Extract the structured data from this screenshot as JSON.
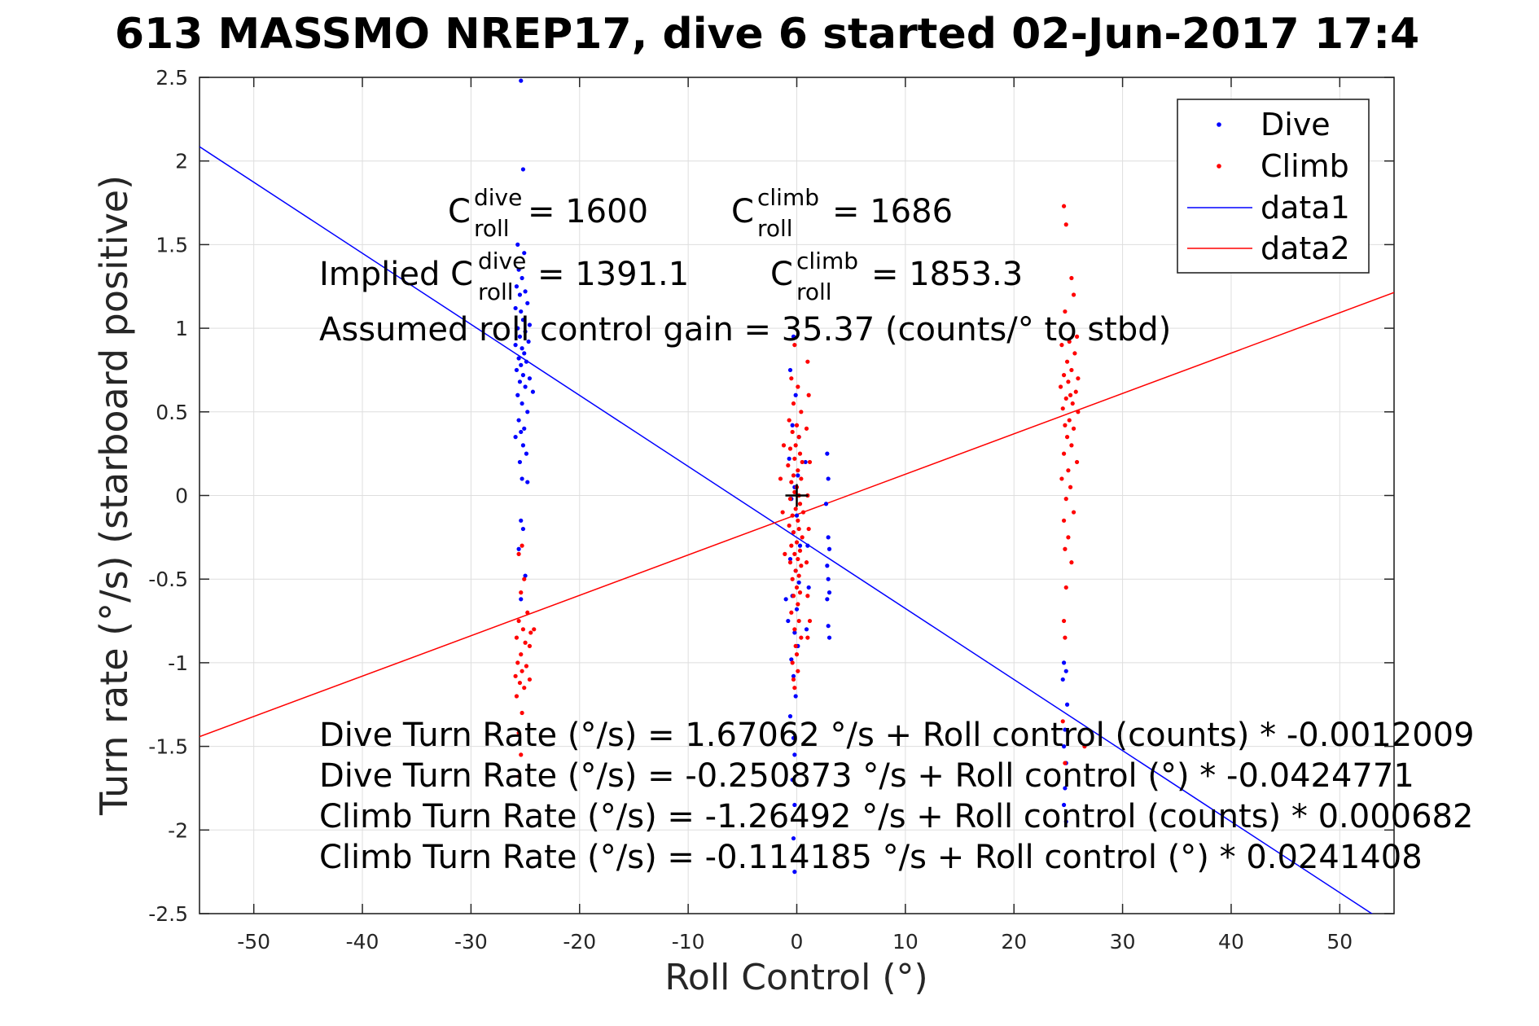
{
  "chart_data": {
    "type": "scatter",
    "title": "613 MASSMO NREP17, dive 6 started 02-Jun-2017 17:4",
    "xlabel": "Roll Control (°)",
    "ylabel": "Turn rate (°/s) (starboard positive)",
    "xlim": [
      -55,
      55
    ],
    "ylim": [
      -2.5,
      2.5
    ],
    "xticks": [
      -50,
      -40,
      -30,
      -20,
      -10,
      0,
      10,
      20,
      30,
      40,
      50
    ],
    "yticks": [
      -2.5,
      -2,
      -1.5,
      -1,
      -0.5,
      0,
      0.5,
      1,
      1.5,
      2,
      2.5
    ],
    "xtick_labels": [
      "-50",
      "-40",
      "-30",
      "-20",
      "-10",
      "0",
      "10",
      "20",
      "30",
      "40",
      "50"
    ],
    "ytick_labels": [
      "-2.5",
      "-2",
      "-1.5",
      "-1",
      "-0.5",
      "0",
      "0.5",
      "1",
      "1.5",
      "2",
      "2.5"
    ],
    "grid": true,
    "legend_position": "top-right",
    "colors": {
      "dive": "#0000ff",
      "climb": "#ff0000",
      "axis": "#262626",
      "grid": "#dedede"
    },
    "series": [
      {
        "name": "Dive",
        "kind": "points",
        "color": "#0000ff",
        "points": [
          [
            -25.4,
            2.48
          ],
          [
            -25.2,
            1.95
          ],
          [
            -25.7,
            1.5
          ],
          [
            -25.1,
            1.45
          ],
          [
            -25.6,
            1.35
          ],
          [
            -25.3,
            1.3
          ],
          [
            -25.8,
            1.25
          ],
          [
            -25.0,
            1.22
          ],
          [
            -25.5,
            1.2
          ],
          [
            -24.8,
            1.15
          ],
          [
            -25.9,
            1.12
          ],
          [
            -25.4,
            1.1
          ],
          [
            -25.2,
            1.05
          ],
          [
            -24.6,
            1.02
          ],
          [
            -25.7,
            1.0
          ],
          [
            -25.0,
            0.98
          ],
          [
            -25.5,
            0.95
          ],
          [
            -24.7,
            0.92
          ],
          [
            -25.9,
            0.9
          ],
          [
            -25.3,
            0.88
          ],
          [
            -25.1,
            0.85
          ],
          [
            -25.6,
            0.82
          ],
          [
            -24.9,
            0.8
          ],
          [
            -25.4,
            0.78
          ],
          [
            -25.8,
            0.75
          ],
          [
            -25.2,
            0.72
          ],
          [
            -24.6,
            0.7
          ],
          [
            -25.5,
            0.68
          ],
          [
            -25.0,
            0.65
          ],
          [
            -24.3,
            0.62
          ],
          [
            -25.7,
            0.6
          ],
          [
            -25.3,
            0.55
          ],
          [
            -24.8,
            0.5
          ],
          [
            -25.6,
            0.45
          ],
          [
            -25.1,
            0.4
          ],
          [
            -25.4,
            0.38
          ],
          [
            -25.9,
            0.35
          ],
          [
            -25.2,
            0.3
          ],
          [
            -24.9,
            0.25
          ],
          [
            -25.5,
            0.2
          ],
          [
            -25.3,
            0.1
          ],
          [
            -24.8,
            0.08
          ],
          [
            -25.4,
            -0.15
          ],
          [
            -25.2,
            -0.2
          ],
          [
            -25.6,
            -0.32
          ],
          [
            -25.0,
            -0.48
          ],
          [
            -25.4,
            -0.62
          ],
          [
            -0.3,
            0.95
          ],
          [
            -0.6,
            0.75
          ],
          [
            -0.1,
            0.6
          ],
          [
            -0.4,
            0.42
          ],
          [
            0.2,
            0.35
          ],
          [
            -0.7,
            0.22
          ],
          [
            0.1,
            0.12
          ],
          [
            -0.2,
            0.05
          ],
          [
            -0.5,
            -0.02
          ],
          [
            0.0,
            -0.12
          ],
          [
            -0.3,
            -0.22
          ],
          [
            0.3,
            -0.3
          ],
          [
            -0.6,
            -0.38
          ],
          [
            -0.1,
            -0.45
          ],
          [
            0.2,
            -0.52
          ],
          [
            -0.4,
            -0.6
          ],
          [
            0.0,
            -0.68
          ],
          [
            -0.8,
            -0.75
          ],
          [
            -0.2,
            -0.82
          ],
          [
            0.1,
            -0.9
          ],
          [
            -0.5,
            -0.98
          ],
          [
            -0.3,
            -1.08
          ],
          [
            -1.0,
            -0.62
          ],
          [
            -0.1,
            -1.2
          ],
          [
            -0.6,
            -1.32
          ],
          [
            -0.3,
            -1.45
          ],
          [
            -0.2,
            -1.55
          ],
          [
            -0.4,
            -1.7
          ],
          [
            -0.2,
            -1.85
          ],
          [
            -0.3,
            -2.05
          ],
          [
            -0.2,
            -2.25
          ],
          [
            0.8,
            0.2
          ],
          [
            1.0,
            -0.3
          ],
          [
            1.1,
            -0.55
          ],
          [
            0.9,
            -0.8
          ],
          [
            2.8,
            0.25
          ],
          [
            2.9,
            0.1
          ],
          [
            2.7,
            -0.05
          ],
          [
            2.9,
            -0.25
          ],
          [
            3.0,
            -0.32
          ],
          [
            2.8,
            -0.42
          ],
          [
            2.9,
            -0.5
          ],
          [
            3.0,
            -0.58
          ],
          [
            2.8,
            -0.62
          ],
          [
            2.9,
            -0.78
          ],
          [
            3.0,
            -0.85
          ],
          [
            24.6,
            -1.0
          ],
          [
            24.8,
            -1.05
          ],
          [
            24.5,
            -1.1
          ],
          [
            24.9,
            -1.25
          ],
          [
            24.7,
            -1.4
          ],
          [
            24.6,
            -1.5
          ],
          [
            24.8,
            -1.6
          ],
          [
            24.7,
            -1.75
          ],
          [
            24.6,
            -1.85
          ],
          [
            24.8,
            -1.95
          ]
        ]
      },
      {
        "name": "Climb",
        "kind": "points",
        "color": "#ff0000",
        "points": [
          [
            24.6,
            1.73
          ],
          [
            24.8,
            1.62
          ],
          [
            25.3,
            1.3
          ],
          [
            24.7,
            1.1
          ],
          [
            25.5,
            1.2
          ],
          [
            25.8,
            0.95
          ],
          [
            25.1,
            0.92
          ],
          [
            24.4,
            0.9
          ],
          [
            25.6,
            0.85
          ],
          [
            24.9,
            0.8
          ],
          [
            25.3,
            0.75
          ],
          [
            24.6,
            0.72
          ],
          [
            25.9,
            0.7
          ],
          [
            25.0,
            0.68
          ],
          [
            24.3,
            0.65
          ],
          [
            25.7,
            0.62
          ],
          [
            25.2,
            0.6
          ],
          [
            24.8,
            0.58
          ],
          [
            25.4,
            0.55
          ],
          [
            24.5,
            0.52
          ],
          [
            25.9,
            0.5
          ],
          [
            25.1,
            0.45
          ],
          [
            24.7,
            0.42
          ],
          [
            25.5,
            0.4
          ],
          [
            24.9,
            0.35
          ],
          [
            25.3,
            0.3
          ],
          [
            24.6,
            0.25
          ],
          [
            25.8,
            0.2
          ],
          [
            25.0,
            0.15
          ],
          [
            24.4,
            0.1
          ],
          [
            25.2,
            0.05
          ],
          [
            24.8,
            -0.02
          ],
          [
            25.5,
            -0.1
          ],
          [
            24.6,
            -0.15
          ],
          [
            25.0,
            -0.25
          ],
          [
            24.7,
            -0.32
          ],
          [
            25.3,
            -0.4
          ],
          [
            24.8,
            -0.55
          ],
          [
            24.6,
            -0.75
          ],
          [
            24.7,
            -0.85
          ],
          [
            24.5,
            -1.35
          ],
          [
            26.5,
            -1.5
          ],
          [
            24.7,
            -1.6
          ],
          [
            -0.2,
            0.9
          ],
          [
            -0.5,
            0.7
          ],
          [
            0.1,
            0.65
          ],
          [
            -0.3,
            0.55
          ],
          [
            0.4,
            0.5
          ],
          [
            -0.7,
            0.45
          ],
          [
            0.0,
            0.42
          ],
          [
            -0.4,
            0.38
          ],
          [
            0.2,
            0.35
          ],
          [
            -0.1,
            0.3
          ],
          [
            -0.6,
            0.28
          ],
          [
            0.3,
            0.25
          ],
          [
            -0.2,
            0.22
          ],
          [
            0.5,
            0.2
          ],
          [
            -0.8,
            0.18
          ],
          [
            0.1,
            0.15
          ],
          [
            -0.3,
            0.12
          ],
          [
            0.4,
            0.1
          ],
          [
            -0.5,
            0.08
          ],
          [
            0.0,
            0.05
          ],
          [
            -0.2,
            0.02
          ],
          [
            0.2,
            0.0
          ],
          [
            -0.6,
            -0.02
          ],
          [
            0.3,
            -0.05
          ],
          [
            -0.1,
            -0.08
          ],
          [
            0.6,
            -0.1
          ],
          [
            -0.4,
            -0.12
          ],
          [
            0.1,
            -0.15
          ],
          [
            -0.7,
            -0.18
          ],
          [
            0.2,
            -0.2
          ],
          [
            -0.3,
            -0.22
          ],
          [
            0.5,
            -0.25
          ],
          [
            0.0,
            -0.28
          ],
          [
            -0.5,
            -0.3
          ],
          [
            0.3,
            -0.33
          ],
          [
            -0.2,
            -0.35
          ],
          [
            0.1,
            -0.38
          ],
          [
            -0.6,
            -0.4
          ],
          [
            0.4,
            -0.42
          ],
          [
            -0.1,
            -0.45
          ],
          [
            0.2,
            -0.48
          ],
          [
            -0.4,
            -0.5
          ],
          [
            0.0,
            -0.55
          ],
          [
            0.3,
            -0.58
          ],
          [
            -0.3,
            -0.6
          ],
          [
            0.1,
            -0.65
          ],
          [
            -0.5,
            -0.7
          ],
          [
            0.2,
            -0.75
          ],
          [
            -0.2,
            -0.8
          ],
          [
            0.4,
            -0.85
          ],
          [
            -0.1,
            -0.9
          ],
          [
            0.0,
            -0.95
          ],
          [
            -0.4,
            -1.0
          ],
          [
            0.1,
            -1.05
          ],
          [
            -0.3,
            -1.1
          ],
          [
            -0.2,
            -1.15
          ],
          [
            -1.2,
            0.3
          ],
          [
            -1.5,
            0.1
          ],
          [
            -1.3,
            -0.1
          ],
          [
            -1.1,
            -0.35
          ],
          [
            1.0,
            0.8
          ],
          [
            1.1,
            0.6
          ],
          [
            0.9,
            0.4
          ],
          [
            1.2,
            0.2
          ],
          [
            1.0,
            0.0
          ],
          [
            1.1,
            -0.2
          ],
          [
            0.9,
            -0.4
          ],
          [
            1.0,
            -0.6
          ],
          [
            1.2,
            -0.75
          ],
          [
            1.0,
            -0.85
          ],
          [
            -25.3,
            -0.3
          ],
          [
            -25.6,
            -0.35
          ],
          [
            -25.1,
            -0.5
          ],
          [
            -25.4,
            -0.58
          ],
          [
            -24.8,
            -0.7
          ],
          [
            -25.6,
            -0.75
          ],
          [
            -25.2,
            -0.8
          ],
          [
            -24.5,
            -0.82
          ],
          [
            -25.8,
            -0.85
          ],
          [
            -25.0,
            -0.88
          ],
          [
            -24.6,
            -0.9
          ],
          [
            -25.4,
            -0.95
          ],
          [
            -25.7,
            -1.0
          ],
          [
            -24.9,
            -1.02
          ],
          [
            -25.3,
            -1.05
          ],
          [
            -25.9,
            -1.08
          ],
          [
            -24.6,
            -1.1
          ],
          [
            -25.5,
            -1.12
          ],
          [
            -25.1,
            -1.15
          ],
          [
            -25.8,
            -1.2
          ],
          [
            -25.3,
            -1.3
          ],
          [
            -25.6,
            -1.42
          ],
          [
            -25.4,
            -1.55
          ],
          [
            -25.6,
            -1.68
          ],
          [
            -24.2,
            -0.8
          ]
        ]
      },
      {
        "name": "data1",
        "kind": "line",
        "color": "#0000ff",
        "intercept": -0.250873,
        "slope": -0.0424771
      },
      {
        "name": "data2",
        "kind": "line",
        "color": "#ff0000",
        "intercept": -0.114185,
        "slope": 0.0241408
      }
    ],
    "center_marker": {
      "x": 0,
      "y": 0
    },
    "annotations": {
      "c_dive": {
        "base": "C",
        "sup": "dive",
        "sub": "roll",
        "value": " = 1600"
      },
      "c_climb": {
        "base": "C",
        "sup": "climb",
        "sub": "roll",
        "value": " = 1686"
      },
      "implied_prefix": "Implied C",
      "implied_dive": {
        "sup": "dive",
        "sub": "roll",
        "value": " = 1391.1"
      },
      "implied_climb": {
        "base": "C",
        "sup": "climb",
        "sub": "roll",
        "value": " = 1853.3"
      },
      "gain": "Assumed roll control gain = 35.37 (counts/° to stbd)",
      "fits": [
        "Dive Turn Rate (°/s) = 1.67062 °/s + Roll control (counts) * -0.0012009",
        "Dive Turn Rate (°/s) = -0.250873 °/s + Roll control (°) * -0.0424771",
        "Climb Turn Rate (°/s) = -1.26492 °/s + Roll control (counts) * 0.000682",
        "Climb Turn Rate (°/s) = -0.114185 °/s + Roll control (°) * 0.0241408"
      ]
    }
  }
}
